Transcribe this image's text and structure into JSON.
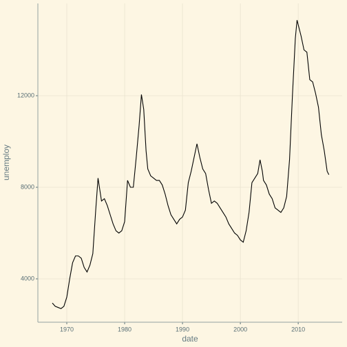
{
  "chart_data": {
    "type": "line",
    "x_label": "date",
    "y_label": "unemploy",
    "x": [
      1967.5,
      1968.0,
      1968.5,
      1969.0,
      1969.5,
      1970.0,
      1970.5,
      1971.0,
      1971.5,
      1972.0,
      1972.5,
      1973.0,
      1973.5,
      1974.0,
      1974.5,
      1975.0,
      1975.4,
      1975.7,
      1976.0,
      1976.5,
      1977.0,
      1977.5,
      1978.0,
      1978.5,
      1979.0,
      1979.5,
      1980.0,
      1980.5,
      1981.0,
      1981.5,
      1982.0,
      1982.5,
      1982.9,
      1983.3,
      1983.7,
      1984.0,
      1984.5,
      1985.0,
      1985.5,
      1986.0,
      1986.5,
      1987.0,
      1987.5,
      1988.0,
      1988.5,
      1989.0,
      1989.5,
      1990.0,
      1990.5,
      1991.0,
      1991.5,
      1992.0,
      1992.5,
      1993.0,
      1993.5,
      1994.0,
      1994.5,
      1995.0,
      1995.5,
      1996.0,
      1996.5,
      1997.0,
      1997.5,
      1998.0,
      1998.5,
      1999.0,
      1999.5,
      2000.0,
      2000.5,
      2001.0,
      2001.5,
      2002.0,
      2002.5,
      2003.0,
      2003.4,
      2003.8,
      2004.0,
      2004.5,
      2005.0,
      2005.5,
      2006.0,
      2006.5,
      2007.0,
      2007.5,
      2008.0,
      2008.5,
      2009.0,
      2009.5,
      2009.8,
      2010.0,
      2010.5,
      2011.0,
      2011.5,
      2012.0,
      2012.5,
      2013.0,
      2013.5,
      2014.0,
      2014.5,
      2015.0,
      2015.3
    ],
    "series": [
      {
        "name": "unemploy",
        "color": "#000000",
        "values": [
          2944,
          2800,
          2750,
          2700,
          2800,
          3200,
          4000,
          4700,
          5000,
          5000,
          4900,
          4500,
          4300,
          4600,
          5100,
          7000,
          8400,
          7900,
          7400,
          7500,
          7200,
          6800,
          6400,
          6100,
          6000,
          6100,
          6500,
          8300,
          8000,
          8000,
          9300,
          10700,
          12050,
          11400,
          9600,
          8800,
          8500,
          8400,
          8300,
          8300,
          8100,
          7700,
          7200,
          6800,
          6600,
          6400,
          6600,
          6700,
          7000,
          8200,
          8700,
          9300,
          9900,
          9300,
          8800,
          8600,
          7900,
          7300,
          7400,
          7300,
          7100,
          6900,
          6700,
          6400,
          6200,
          6000,
          5900,
          5700,
          5600,
          6100,
          6900,
          8200,
          8400,
          8600,
          9200,
          8700,
          8300,
          8100,
          7700,
          7500,
          7100,
          7000,
          6900,
          7100,
          7600,
          9200,
          12000,
          14500,
          15300,
          15100,
          14600,
          14000,
          13900,
          12700,
          12600,
          12100,
          11500,
          10300,
          9600,
          8700,
          8550
        ]
      }
    ],
    "xlim": [
      1965.0,
      2017.6
    ],
    "xticks": [
      1970,
      1980,
      1990,
      2000,
      2010
    ],
    "ylim": [
      2105,
      16030
    ],
    "yticks": [
      4000,
      8000,
      12000
    ],
    "grid": true
  }
}
